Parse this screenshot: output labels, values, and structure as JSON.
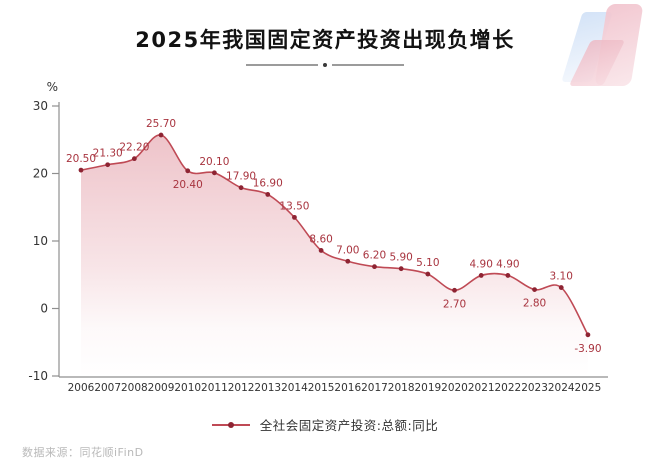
{
  "header": {
    "title": "2025年我国固定资产投资出现负增长"
  },
  "legend": {
    "label": "全社会固定资产投资:总额:同比"
  },
  "footer": {
    "source_label": "数据来源：同花顺iFinD"
  },
  "chart_data": {
    "type": "area",
    "title": "2025年我国固定资产投资出现负增长",
    "x": [
      "2006",
      "2007",
      "2008",
      "2009",
      "2010",
      "2011",
      "2012",
      "2013",
      "2014",
      "2015",
      "2016",
      "2017",
      "2018",
      "2019",
      "2020",
      "2021",
      "2022",
      "2023",
      "2024",
      "2025"
    ],
    "series": [
      {
        "name": "全社会固定资产投资:总额:同比",
        "values": [
          20.5,
          21.3,
          22.2,
          25.7,
          20.4,
          20.1,
          17.9,
          16.9,
          13.5,
          8.6,
          7.0,
          6.2,
          5.9,
          5.1,
          2.7,
          4.9,
          4.9,
          2.8,
          3.1,
          -3.9
        ]
      }
    ],
    "data_labels": [
      "20.50",
      "21.30",
      "22.20",
      "25.70",
      "20.40",
      "20.10",
      "17.90",
      "16.90",
      "13.50",
      "8.60",
      "7.00",
      "6.20",
      "5.90",
      "5.10",
      "2.70",
      "4.90",
      "4.90",
      "2.80",
      "3.10",
      "-3.90"
    ],
    "labels_below_indices": [
      4,
      14,
      17,
      19
    ],
    "ylabel": "%",
    "yticks": [
      30,
      20,
      10,
      0,
      -10
    ],
    "ytick_labels": [
      "30",
      "20",
      "10",
      "0",
      "-10"
    ],
    "ylim": [
      -10,
      30
    ],
    "grid": false,
    "legend_position": "bottom",
    "colors": {
      "line": "#bf4a55",
      "marker": "#8e2433",
      "data_label": "#a8343f",
      "area_gradient_top": "#dd8894",
      "axis": "#8f8f8f",
      "tick_text": "#333333",
      "title_text": "#121212",
      "divider": "#9b9b9b",
      "source_text": "#b9b9b9",
      "logo_blue": "#c9dcf5",
      "logo_pink": "#f1c3cd"
    }
  }
}
